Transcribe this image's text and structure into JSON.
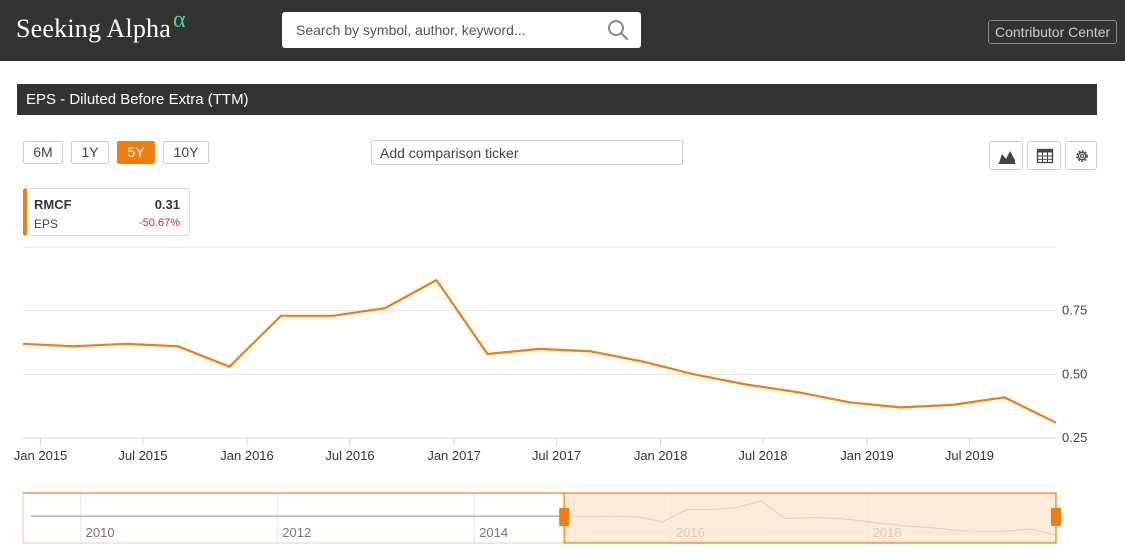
{
  "header": {
    "logo_text": "Seeking Alpha",
    "logo_symbol": "α",
    "search_placeholder": "Search by symbol, author, keyword...",
    "contributor_label": "Contributor Center"
  },
  "section": {
    "title": "EPS - Diluted Before Extra (TTM)"
  },
  "controls": {
    "ranges": [
      "6M",
      "1Y",
      "5Y",
      "10Y"
    ],
    "active_range": "5Y",
    "comparison_placeholder": "Add comparison ticker",
    "tools": [
      "area-chart-icon",
      "table-icon",
      "gear-icon"
    ]
  },
  "legend": {
    "ticker": "RMCF",
    "value": "0.31",
    "metric": "EPS",
    "change": "-50.67%"
  },
  "colors": {
    "accent": "#f07e0e",
    "header_bg": "#333333",
    "logo_alpha": "#4fd67f",
    "negative": "#e0202b",
    "navigator_fill": "#fde3cc"
  },
  "chart_data": {
    "type": "line",
    "title": "",
    "xlabel": "",
    "ylabel": "",
    "y_axis_side": "right",
    "x_ticks": [
      "Jan 2015",
      "Jul 2015",
      "Jan 2016",
      "Jul 2016",
      "Jan 2017",
      "Jul 2017",
      "Jan 2018",
      "Jul 2018",
      "Jan 2019",
      "Jul 2019"
    ],
    "y_ticks": [
      "0.25",
      "0.50",
      "0.75"
    ],
    "ylim": [
      0.25,
      1.0
    ],
    "xlim": [
      "2014-12-01",
      "2019-12-01"
    ],
    "grid": true,
    "series": [
      {
        "name": "RMCF",
        "x": [
          "2014-12-01",
          "2015-03-01",
          "2015-06-01",
          "2015-09-01",
          "2015-12-01",
          "2016-03-01",
          "2016-06-01",
          "2016-09-01",
          "2016-12-01",
          "2017-03-01",
          "2017-06-01",
          "2017-09-01",
          "2017-12-01",
          "2018-03-01",
          "2018-06-01",
          "2018-09-01",
          "2018-12-01",
          "2019-03-01",
          "2019-06-01",
          "2019-09-01",
          "2019-12-01"
        ],
        "values": [
          0.62,
          0.61,
          0.62,
          0.61,
          0.53,
          0.73,
          0.73,
          0.76,
          0.87,
          0.58,
          0.6,
          0.59,
          0.55,
          0.5,
          0.46,
          0.43,
          0.39,
          0.37,
          0.38,
          0.41,
          0.31
        ]
      }
    ],
    "navigator": {
      "x_ticks": [
        "2010",
        "2012",
        "2014",
        "2016",
        "2018"
      ],
      "selected_range": [
        "2014-12-01",
        "2019-12-01"
      ],
      "xlim": [
        "2009-06-01",
        "2019-12-01"
      ]
    }
  }
}
